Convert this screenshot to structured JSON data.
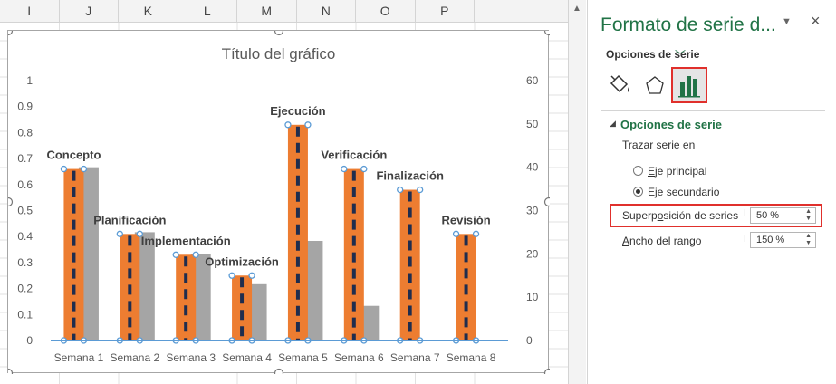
{
  "sheet": {
    "columns": [
      "I",
      "J",
      "K",
      "L",
      "M",
      "N",
      "O",
      "P"
    ]
  },
  "chart_data": {
    "type": "bar",
    "title": "Título del gráfico",
    "categories": [
      "Semana 1",
      "Semana 2",
      "Semana 3",
      "Semana 4",
      "Semana 5",
      "Semana 6",
      "Semana 7",
      "Semana 8"
    ],
    "series": [
      {
        "axis": "primary",
        "values": [
          0.66,
          0.41,
          0.33,
          0.25,
          0.83,
          0.66,
          0.58,
          0.41
        ],
        "color": "#ed7d31"
      },
      {
        "axis": "secondary",
        "values": [
          40,
          25,
          20,
          13,
          23,
          8,
          0,
          0
        ],
        "color": "#a5a5a5"
      }
    ],
    "data_labels": [
      "Concepto",
      "Planificación",
      "Implementación",
      "Optimización",
      "Ejecución",
      "Verificación",
      "Finalización",
      "Revisión"
    ],
    "y_primary": {
      "ticks": [
        "0",
        "0.1",
        "0.2",
        "0.3",
        "0.4",
        "0.5",
        "0.6",
        "0.7",
        "0.8",
        "0.9",
        "1"
      ],
      "ylim": [
        0,
        1
      ]
    },
    "y_secondary": {
      "ticks": [
        "0",
        "10",
        "20",
        "30",
        "40",
        "50",
        "60"
      ],
      "ylim": [
        0,
        60
      ]
    },
    "colors": {
      "dash": "#1f2d4e",
      "axis_line": "#5b9bd5",
      "handle": "#5b9bd5"
    },
    "grid": false,
    "legend": "none"
  },
  "panel": {
    "title": "Formato de serie d...",
    "tab_label": "Opciones de serie",
    "section_title": "Opciones de serie",
    "plot_on_label": "Trazar serie en",
    "radio_primary": {
      "label_hot": "E",
      "label_rest": "je principal",
      "checked": false
    },
    "radio_secondary": {
      "label_hot": "E",
      "label_rest": "je secundario",
      "checked": true
    },
    "overlap": {
      "label_pre": "Superp",
      "label_hot": "o",
      "label_post": "sición de series",
      "value": "50 %"
    },
    "gap": {
      "label_hot": "A",
      "label_rest": "ncho del rango",
      "value": "150 %"
    },
    "icons": {
      "fill": "paint-bucket-icon",
      "effects": "pentagon-icon",
      "series": "bar-chart-icon"
    },
    "accent": "#217346",
    "highlight": "#e0302c"
  }
}
